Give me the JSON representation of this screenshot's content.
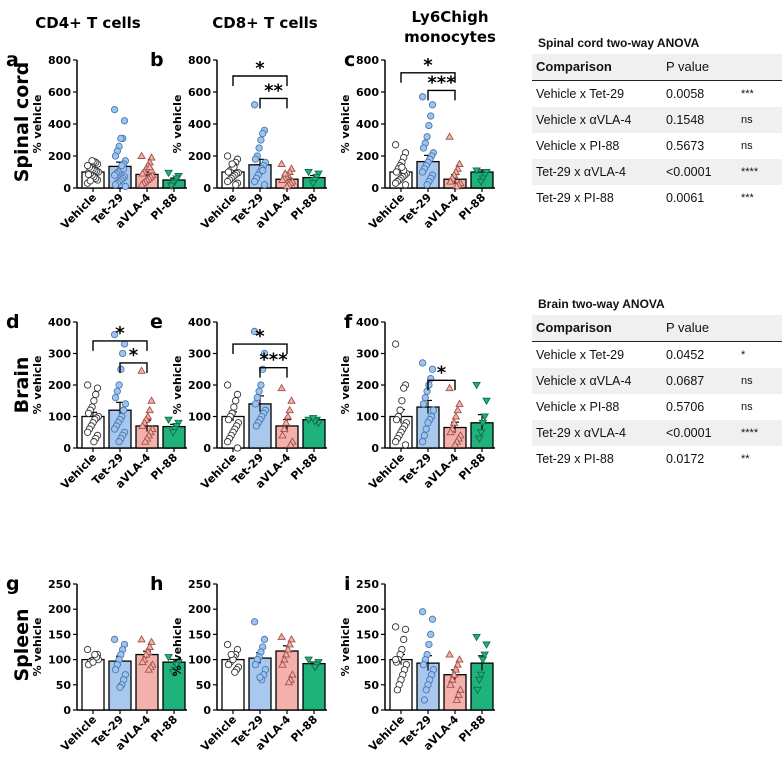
{
  "titles": {
    "col1": "CD4+ T cells",
    "col2": "CD8+ T cells",
    "col3_line1": "Ly6Chigh",
    "col3_line2": "monocytes",
    "row1": "Spinal cord",
    "row2": "Brain",
    "row3": "Spleen"
  },
  "colors": {
    "Vehicle": "#ffffff",
    "Tet-29": "#a8c8ee",
    "aVLA-4": "#f4b0aa",
    "PI-88": "#1fb27a"
  },
  "chart_data": [
    {
      "type": "bar",
      "panel": "a",
      "ylabel": "% vehicle",
      "ylim": [
        0,
        800
      ],
      "yticks": [
        0,
        200,
        400,
        600,
        800
      ],
      "categories": [
        "Vehicle",
        "Tet-29",
        "aVLA-4",
        "PI-88"
      ],
      "values": [
        100,
        135,
        85,
        50
      ],
      "points": [
        [
          30,
          50,
          60,
          70,
          80,
          90,
          95,
          100,
          105,
          110,
          115,
          120,
          130,
          140,
          150,
          160,
          165,
          170,
          45,
          85
        ],
        [
          490,
          420,
          310,
          310,
          260,
          230,
          200,
          170,
          150,
          130,
          110,
          100,
          90,
          80,
          70,
          60,
          50,
          40,
          30,
          20,
          10,
          120,
          140
        ],
        [
          200,
          190,
          160,
          140,
          120,
          100,
          90,
          80,
          70,
          60,
          50,
          40,
          30,
          20,
          110,
          130
        ],
        [
          95,
          75,
          60,
          40,
          30,
          15
        ]
      ],
      "significance": []
    },
    {
      "type": "bar",
      "panel": "b",
      "ylabel": "% vehicle",
      "ylim": [
        0,
        800
      ],
      "yticks": [
        0,
        200,
        400,
        600,
        800
      ],
      "categories": [
        "Vehicle",
        "Tet-29",
        "aVLA-4",
        "PI-88"
      ],
      "values": [
        100,
        145,
        55,
        65
      ],
      "points": [
        [
          200,
          180,
          160,
          140,
          120,
          110,
          100,
          95,
          90,
          80,
          70,
          60,
          50,
          40,
          30,
          20,
          130,
          150
        ],
        [
          520,
          360,
          340,
          300,
          250,
          200,
          180,
          160,
          140,
          120,
          100,
          80,
          60,
          40,
          20,
          110
        ],
        [
          150,
          120,
          100,
          80,
          70,
          60,
          50,
          40,
          30,
          20,
          10,
          90
        ],
        [
          100,
          90,
          70,
          50,
          30
        ]
      ],
      "significance": [
        {
          "from": 0,
          "to": 2,
          "level": 700,
          "label": "*"
        },
        {
          "from": 1,
          "to": 2,
          "level": 560,
          "label": "**"
        }
      ]
    },
    {
      "type": "bar",
      "panel": "c",
      "ylabel": "% vehicle",
      "ylim": [
        0,
        800
      ],
      "yticks": [
        0,
        200,
        400,
        600,
        800
      ],
      "categories": [
        "Vehicle",
        "Tet-29",
        "aVLA-4",
        "PI-88"
      ],
      "values": [
        100,
        165,
        55,
        100
      ],
      "points": [
        [
          270,
          220,
          190,
          160,
          140,
          120,
          100,
          90,
          80,
          70,
          60,
          50,
          40,
          30,
          20,
          110,
          130
        ],
        [
          570,
          520,
          450,
          390,
          320,
          280,
          250,
          220,
          200,
          180,
          160,
          140,
          120,
          100,
          80,
          60,
          40,
          20
        ],
        [
          320,
          150,
          120,
          100,
          80,
          60,
          40,
          30,
          20,
          10
        ],
        [
          110,
          100,
          80,
          60,
          40
        ]
      ],
      "significance": [
        {
          "from": 0,
          "to": 2,
          "level": 720,
          "label": "*"
        },
        {
          "from": 1,
          "to": 2,
          "level": 610,
          "label": "***"
        }
      ]
    },
    {
      "type": "bar",
      "panel": "d",
      "ylabel": "% vehicle",
      "ylim": [
        0,
        400
      ],
      "yticks": [
        0,
        100,
        200,
        300,
        400
      ],
      "categories": [
        "Vehicle",
        "Tet-29",
        "aVLA-4",
        "PI-88"
      ],
      "values": [
        100,
        120,
        70,
        68
      ],
      "points": [
        [
          200,
          190,
          170,
          150,
          130,
          120,
          110,
          100,
          95,
          90,
          80,
          70,
          60,
          50,
          40,
          30,
          20
        ],
        [
          360,
          330,
          300,
          250,
          200,
          180,
          160,
          140,
          120,
          100,
          90,
          80,
          70,
          60,
          50,
          40,
          30,
          20
        ],
        [
          245,
          150,
          120,
          100,
          90,
          80,
          70,
          60,
          50,
          40,
          30,
          20
        ],
        [
          90,
          80,
          70,
          60,
          50
        ]
      ],
      "significance": [
        {
          "from": 0,
          "to": 2,
          "level": 340,
          "label": "*"
        },
        {
          "from": 1,
          "to": 2,
          "level": 270,
          "label": "*"
        }
      ]
    },
    {
      "type": "bar",
      "panel": "e",
      "ylabel": "% vehicle",
      "ylim": [
        0,
        400
      ],
      "yticks": [
        0,
        100,
        200,
        300,
        400
      ],
      "categories": [
        "Vehicle",
        "Tet-29",
        "aVLA-4",
        "PI-88"
      ],
      "values": [
        100,
        140,
        70,
        90
      ],
      "points": [
        [
          200,
          170,
          150,
          130,
          110,
          100,
          90,
          80,
          70,
          60,
          50,
          40,
          30,
          20,
          0
        ],
        [
          370,
          300,
          250,
          200,
          180,
          160,
          140,
          120,
          110,
          100,
          90,
          80,
          70
        ],
        [
          190,
          150,
          120,
          100,
          80,
          60,
          40,
          20,
          10
        ],
        [
          90,
          80,
          90,
          85,
          95
        ]
      ],
      "significance": [
        {
          "from": 0,
          "to": 2,
          "level": 330,
          "label": "*"
        },
        {
          "from": 1,
          "to": 2,
          "level": 255,
          "label": "***"
        }
      ]
    },
    {
      "type": "bar",
      "panel": "f",
      "ylabel": "% vehicle",
      "ylim": [
        0,
        400
      ],
      "yticks": [
        0,
        100,
        200,
        300,
        400
      ],
      "categories": [
        "Vehicle",
        "Tet-29",
        "aVLA-4",
        "PI-88"
      ],
      "values": [
        100,
        130,
        65,
        80
      ],
      "points": [
        [
          330,
          200,
          190,
          150,
          120,
          100,
          90,
          80,
          70,
          60,
          50,
          40,
          30,
          20,
          10
        ],
        [
          270,
          250,
          220,
          200,
          180,
          160,
          140,
          120,
          100,
          90,
          80,
          60,
          40,
          20
        ],
        [
          190,
          140,
          120,
          100,
          80,
          60,
          50,
          40,
          30,
          20,
          10
        ],
        [
          200,
          150,
          100,
          80,
          50,
          30
        ]
      ],
      "significance": [
        {
          "from": 1,
          "to": 2,
          "level": 215,
          "label": "*"
        }
      ]
    },
    {
      "type": "bar",
      "panel": "g",
      "ylabel": "% vehicle",
      "ylim": [
        0,
        250
      ],
      "yticks": [
        0,
        50,
        100,
        150,
        200,
        250
      ],
      "categories": [
        "Vehicle",
        "Tet-29",
        "aVLA-4",
        "PI-88"
      ],
      "values": [
        100,
        97,
        110,
        95
      ],
      "points": [
        [
          120,
          110,
          105,
          100,
          98,
          95,
          90,
          100,
          105,
          110,
          95
        ],
        [
          140,
          130,
          120,
          110,
          100,
          90,
          80,
          70,
          60,
          50,
          45
        ],
        [
          140,
          135,
          125,
          115,
          110,
          100,
          95,
          90,
          85,
          80
        ],
        [
          105,
          95,
          90,
          80,
          75
        ]
      ],
      "significance": []
    },
    {
      "type": "bar",
      "panel": "h",
      "ylabel": "% vehicle",
      "ylim": [
        0,
        250
      ],
      "yticks": [
        0,
        50,
        100,
        150,
        200,
        250
      ],
      "categories": [
        "Vehicle",
        "Tet-29",
        "aVLA-4",
        "PI-88"
      ],
      "values": [
        100,
        103,
        117,
        92
      ],
      "points": [
        [
          130,
          120,
          110,
          105,
          100,
          95,
          90,
          85,
          80,
          75,
          100,
          110
        ],
        [
          175,
          140,
          125,
          115,
          105,
          100,
          90,
          80,
          70,
          60,
          65
        ],
        [
          145,
          140,
          130,
          120,
          110,
          100,
          90,
          70,
          60,
          55
        ],
        [
          100,
          95,
          90,
          85
        ]
      ],
      "significance": []
    },
    {
      "type": "bar",
      "panel": "i",
      "ylabel": "% vehicle",
      "ylim": [
        0,
        250
      ],
      "yticks": [
        0,
        50,
        100,
        150,
        200,
        250
      ],
      "categories": [
        "Vehicle",
        "Tet-29",
        "aVLA-4",
        "PI-88"
      ],
      "values": [
        100,
        93,
        70,
        93
      ],
      "points": [
        [
          165,
          160,
          140,
          120,
          110,
          100,
          95,
          90,
          80,
          70,
          60,
          50,
          40,
          100
        ],
        [
          195,
          180,
          150,
          130,
          110,
          100,
          90,
          80,
          70,
          60,
          50,
          40,
          20
        ],
        [
          110,
          100,
          90,
          80,
          70,
          60,
          50,
          40,
          30,
          20
        ],
        [
          145,
          130,
          110,
          100,
          70,
          60,
          40
        ]
      ],
      "significance": []
    }
  ],
  "tables": [
    {
      "title": "Spinal cord two-way ANOVA",
      "headers": [
        "Comparison",
        "P value",
        ""
      ],
      "rows": [
        [
          "Vehicle x Tet-29",
          "0.0058",
          "***"
        ],
        [
          "Vehicle x αVLA-4",
          "0.1548",
          "ns"
        ],
        [
          "Vehicle x PI-88",
          "0.5673",
          "ns"
        ],
        [
          "Tet-29 x αVLA-4",
          "<0.0001",
          "****"
        ],
        [
          "Tet-29 x PI-88",
          "0.0061",
          "***"
        ]
      ]
    },
    {
      "title": "Brain two-way ANOVA",
      "headers": [
        "Comparison",
        "P value",
        ""
      ],
      "rows": [
        [
          "Vehicle x Tet-29",
          "0.0452",
          "*"
        ],
        [
          "Vehicle x αVLA-4",
          "0.0687",
          "ns"
        ],
        [
          "Vehicle x PI-88",
          "0.5706",
          "ns"
        ],
        [
          "Tet-29 x αVLA-4",
          "<0.0001",
          "****"
        ],
        [
          "Tet-29 x PI-88",
          "0.0172",
          "**"
        ]
      ]
    }
  ]
}
